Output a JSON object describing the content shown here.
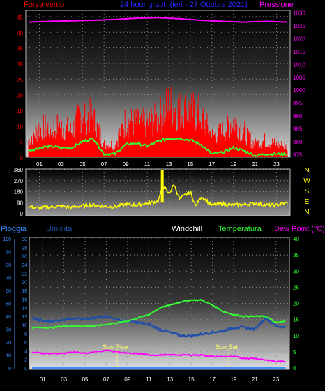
{
  "colors": {
    "wind_label": "#ff0000",
    "title": "#2a2aff",
    "pressure": "#ff00ff",
    "gust": "#ff0000",
    "avg_wind": "#33ff33",
    "direction": "#ffff00",
    "rain": "#3a8cff",
    "humidity": "#1f4fa8",
    "windchill": "#ffffff",
    "temperature": "#33ff33",
    "dew_point": "#ff00ff",
    "sun": "#ffff66"
  },
  "header": {
    "left_label": "Forza vento",
    "title": "24 hour graph (ieri - 27 Ottobre 2021)",
    "right_label": "Pressione"
  },
  "legend": {
    "rain": "Pioggia",
    "humidity": "Umidita",
    "windchill": "Windchill",
    "temperature": "Temperatura",
    "dew_point": "Dew Point (°C)"
  },
  "annotations": {
    "sun_rise": "Sun Rise",
    "sun_set": "Sun Set"
  },
  "compass": [
    "N",
    "W",
    "S",
    "E",
    "N"
  ],
  "chart_data": [
    {
      "type": "line",
      "name": "wind-pressure",
      "x_ticks": [
        "01",
        "03",
        "05",
        "07",
        "09",
        "11",
        "13",
        "15",
        "17",
        "19",
        "21",
        "23"
      ],
      "y_left_ticks": [
        0,
        5,
        10,
        15,
        20,
        25,
        30,
        35,
        40,
        45
      ],
      "ylim_left": [
        0,
        47
      ],
      "y_right_ticks": [
        975,
        980,
        985,
        990,
        995,
        1000,
        1005,
        1010,
        1015,
        1020,
        1025,
        1030
      ],
      "ylim_right": [
        974,
        1031
      ],
      "grid": true,
      "gust_envelope": {
        "hours": [
          0,
          1,
          2,
          3,
          4,
          5,
          6,
          7,
          8,
          9,
          10,
          11,
          12,
          13,
          14,
          15,
          16,
          17,
          18,
          19,
          20,
          21,
          22,
          23,
          24
        ],
        "values": [
          8,
          14,
          14,
          15,
          12,
          22,
          18,
          6,
          6,
          17,
          16,
          16,
          18,
          25,
          22,
          22,
          20,
          10,
          12,
          18,
          12,
          6,
          8,
          6,
          5
        ]
      },
      "series": [
        {
          "hours": [
            0,
            1,
            2,
            3,
            4,
            5,
            6,
            7,
            8,
            9,
            10,
            11,
            12,
            13,
            14,
            15,
            16,
            17,
            18,
            19,
            20,
            21,
            22,
            23,
            24
          ],
          "values": [
            2,
            3,
            3.5,
            3,
            3,
            5,
            6,
            1,
            1,
            4,
            4.5,
            3.5,
            5,
            6,
            6,
            5.5,
            4,
            1,
            1.5,
            3,
            2,
            0.5,
            1,
            1,
            1
          ]
        },
        {
          "hours": [
            0,
            2,
            4,
            6,
            8,
            10,
            12,
            14,
            16,
            18,
            20,
            22,
            24
          ],
          "values": [
            1026.5,
            1026.8,
            1027,
            1027.2,
            1027.5,
            1028,
            1028.2,
            1027.8,
            1027.2,
            1026.8,
            1026.5,
            1026.8,
            1026.5
          ]
        }
      ]
    },
    {
      "type": "line",
      "name": "wind-direction",
      "x_ticks": [
        "01",
        "03",
        "05",
        "07",
        "09",
        "11",
        "13",
        "15",
        "17",
        "19",
        "21",
        "23"
      ],
      "y_ticks": [
        0,
        90,
        180,
        270,
        360
      ],
      "ylim": [
        0,
        360
      ],
      "series": [
        {
          "hours": [
            0,
            1,
            2,
            3,
            4,
            5,
            6,
            7,
            8,
            9,
            10,
            11,
            12,
            12.5,
            13,
            13.5,
            14,
            15,
            15.5,
            16,
            17,
            18,
            19,
            20,
            21,
            22,
            23,
            24
          ],
          "values": [
            55,
            45,
            55,
            60,
            50,
            65,
            70,
            60,
            55,
            75,
            70,
            85,
            100,
            230,
            160,
            240,
            120,
            180,
            60,
            140,
            70,
            80,
            70,
            75,
            85,
            70,
            70,
            90
          ]
        }
      ]
    },
    {
      "type": "line",
      "name": "temperature-humidity",
      "x_ticks": [
        "01",
        "03",
        "05",
        "07",
        "09",
        "11",
        "13",
        "15",
        "17",
        "19",
        "21",
        "23"
      ],
      "y_humidity_ticks": [
        0,
        10,
        20,
        30,
        40,
        50,
        60,
        70,
        80,
        90,
        100
      ],
      "y_rain_ticks": [
        0,
        2,
        4,
        6,
        8,
        10,
        12,
        14,
        16,
        18,
        20,
        22,
        24,
        26,
        28,
        30
      ],
      "y_right_ticks": [
        0,
        5,
        10,
        15,
        20,
        25,
        30,
        35,
        40
      ],
      "ylim_right": [
        0,
        40
      ],
      "series": [
        {
          "hours": [
            0,
            1,
            2,
            3,
            4,
            5,
            6,
            7,
            8,
            9,
            10,
            11,
            12,
            13,
            14,
            15,
            16,
            17,
            18,
            19,
            20,
            21,
            22,
            23,
            24
          ],
          "values": [
            15.5,
            14.5,
            14.5,
            15,
            15.5,
            15,
            15.5,
            16,
            15,
            14.5,
            14,
            13.5,
            12,
            11,
            10,
            10,
            10.5,
            11,
            11.5,
            12.5,
            12.5,
            12,
            15.5,
            13,
            12.5
          ]
        },
        {
          "hours": [
            0,
            1,
            2,
            3,
            4,
            5,
            6,
            7,
            8,
            9,
            10,
            11,
            12,
            13,
            14,
            15,
            16,
            17,
            18,
            19,
            20,
            21,
            22,
            23,
            24
          ],
          "values": [
            12.5,
            12.5,
            12.5,
            13,
            13,
            13,
            13,
            13.5,
            14,
            14.5,
            15.5,
            16.5,
            18.5,
            19.5,
            20.5,
            21,
            21,
            19.5,
            17.5,
            16.5,
            16,
            16,
            16,
            14,
            14.5
          ]
        },
        {
          "hours": [
            0,
            1,
            2,
            3,
            4,
            5,
            6,
            7,
            8,
            9,
            10,
            11,
            12,
            13,
            14,
            15,
            16,
            17,
            18,
            19,
            20,
            21,
            22,
            23,
            24
          ],
          "values": [
            5,
            4.5,
            4.5,
            4.5,
            5,
            4.5,
            5,
            5.5,
            5,
            4.5,
            4.5,
            4,
            4,
            4,
            4,
            4,
            4,
            3.5,
            3.5,
            3.5,
            3,
            3,
            2.5,
            2,
            2
          ]
        },
        {
          "hours": [
            0,
            24
          ],
          "values": [
            0,
            0
          ]
        }
      ]
    }
  ]
}
